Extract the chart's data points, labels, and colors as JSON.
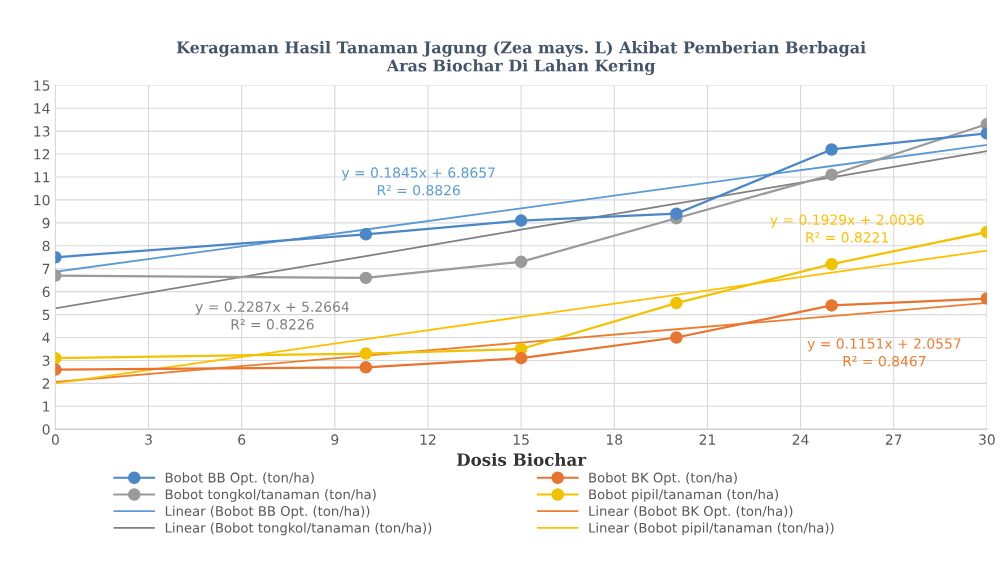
{
  "chart_data": {
    "type": "line",
    "title": "Keragaman Hasil Tanaman Jagung (Zea mays. L) Akibat Pemberian Berbagai\nAras Biochar Di Lahan Kering",
    "xlabel": "Dosis Biochar",
    "x": [
      0,
      10,
      15,
      20,
      25,
      30
    ],
    "series": [
      {
        "name": "Bobot BB Opt. (ton/ha)",
        "color": "#4a86c8",
        "marker": "circle",
        "values": [
          7.5,
          8.5,
          9.1,
          9.4,
          12.2,
          12.9
        ]
      },
      {
        "name": "Bobot BK Opt. (ton/ha)",
        "color": "#e8742f",
        "marker": "circle",
        "values": [
          2.6,
          2.7,
          3.1,
          4.0,
          5.4,
          5.7
        ]
      },
      {
        "name": "Bobot tongkol/tanaman (ton/ha)",
        "color": "#9a9a9a",
        "marker": "circle",
        "values": [
          6.7,
          6.6,
          7.3,
          9.2,
          11.1,
          13.3
        ]
      },
      {
        "name": "Bobot pipil/tanaman (ton/ha)",
        "color": "#f2c200",
        "marker": "circle",
        "values": [
          3.1,
          3.3,
          3.5,
          5.5,
          7.2,
          8.6
        ]
      },
      {
        "name": "Linear (Bobot BB Opt. (ton/ha))",
        "color": "#5b9bd5",
        "marker": "none",
        "values": [
          6.87,
          8.71,
          9.63,
          10.56,
          11.48,
          12.4
        ]
      },
      {
        "name": "Linear (Bobot BK Opt. (ton/ha))",
        "color": "#ed7d31",
        "marker": "none",
        "values": [
          2.06,
          3.21,
          3.78,
          4.36,
          4.93,
          5.51
        ]
      },
      {
        "name": "Linear (Bobot tongkol/tanaman (ton/ha))",
        "color": "#808080",
        "marker": "none",
        "values": [
          5.27,
          7.55,
          8.7,
          9.84,
          10.98,
          12.13
        ]
      },
      {
        "name": "Linear (Bobot pipil/tanaman (ton/ha))",
        "color": "#ffc000",
        "marker": "none",
        "values": [
          2.0,
          3.93,
          4.9,
          5.86,
          6.83,
          7.79
        ]
      }
    ],
    "annotations": [
      "y = 0.1845x + 6.8657\nR² = 0.8826",
      "y = 0.1151x + 2.0557\nR² = 0.8467",
      "y = 0.2287x + 5.2664\nR² = 0.8226",
      "y = 0.1929x + 2.0036\nR² = 0.8221"
    ],
    "xlim": [
      0,
      30
    ],
    "xticks": [
      0,
      3,
      6,
      9,
      12,
      15,
      18,
      21,
      24,
      27,
      30
    ],
    "ylim": [
      0,
      15
    ],
    "yticks": [
      0,
      1,
      2,
      3,
      4,
      5,
      6,
      7,
      8,
      9,
      10,
      11,
      12,
      13,
      14,
      15
    ],
    "grid": true,
    "legend": "bottom",
    "line_style": "solid"
  }
}
